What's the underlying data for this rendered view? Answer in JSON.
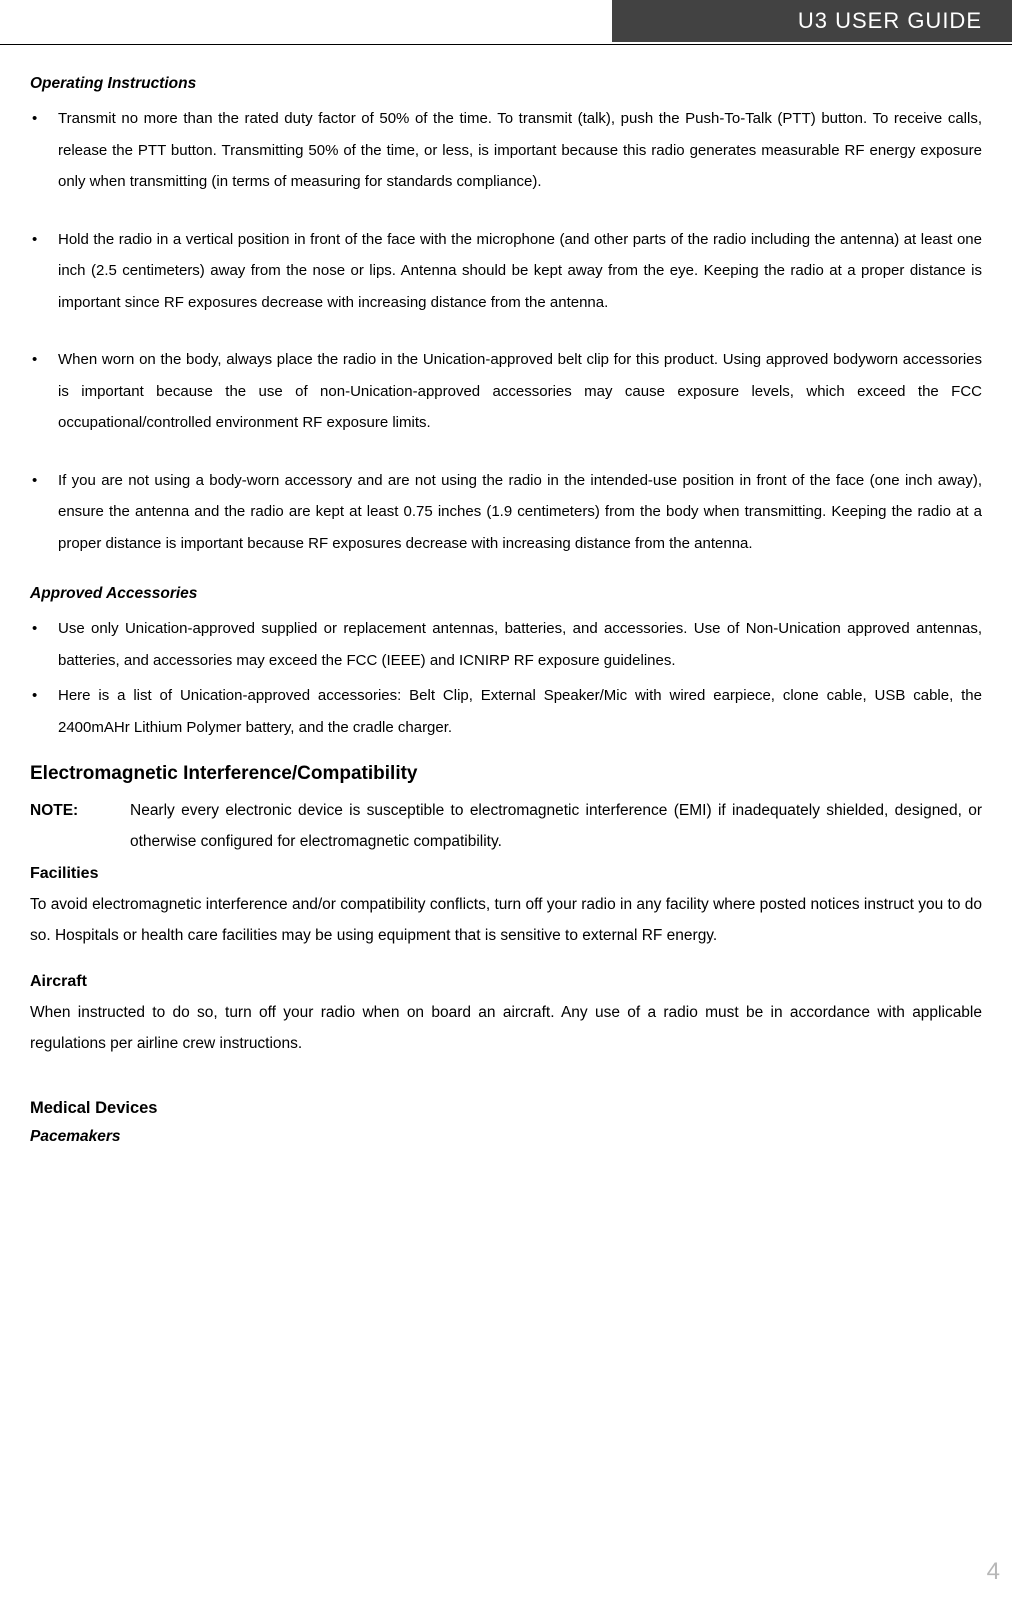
{
  "header": {
    "title": "U3 USER GUIDE",
    "bg_color": "#424242",
    "text_color": "#ffffff"
  },
  "operating_instructions": {
    "heading": "Operating Instructions",
    "items": [
      "Transmit no more than the rated duty factor of 50% of the time. To transmit (talk), push the Push-To-Talk (PTT) button. To receive calls, release the PTT button. Transmitting 50% of the time, or less, is important because this radio generates measurable RF energy exposure only when transmitting (in terms of measuring for standards compliance).",
      "Hold the radio in a vertical position in front of the face with the microphone (and other parts of the radio including the antenna) at least one inch (2.5 centimeters) away from the nose or lips. Antenna should be kept away from the eye. Keeping the radio at a proper distance is important since RF exposures decrease with increasing distance from the antenna.",
      "When worn on the body, always place the radio in the Unication-approved belt clip for this product. Using approved bodyworn accessories is important because the use of non-Unication-approved accessories may cause exposure levels, which exceed the FCC occupational/controlled environment RF exposure limits.",
      "If you are not using a body-worn accessory and are not using the radio in the intended-use position in front of the face (one inch away), ensure the antenna and the radio are kept at least 0.75 inches (1.9 centimeters) from the body when transmitting. Keeping the radio at a proper distance is important because RF exposures decrease with increasing distance from the antenna."
    ]
  },
  "approved_accessories": {
    "heading": "Approved Accessories",
    "items": [
      "Use only Unication-approved supplied or replacement antennas, batteries, and accessories. Use of Non-Unication approved antennas, batteries, and accessories may exceed the FCC (IEEE) and ICNIRP RF exposure guidelines.",
      "Here is a list of Unication-approved accessories: Belt Clip, External Speaker/Mic with wired earpiece, clone cable, USB cable, the 2400mAHr Lithium Polymer battery, and the cradle charger."
    ]
  },
  "emi": {
    "heading": "Electromagnetic Interference/Compatibility",
    "note_label": "NOTE:",
    "note_text": "Nearly every electronic device is susceptible to electromagnetic interference (EMI) if inadequately shielded, designed, or otherwise configured for electromagnetic compatibility.",
    "facilities_heading": "Facilities",
    "facilities_text": "To avoid electromagnetic interference and/or compatibility conflicts, turn off your radio in any facility where posted notices instruct you to do so. Hospitals or health care facilities may be using equipment that is sensitive to external RF energy.",
    "aircraft_heading": "Aircraft",
    "aircraft_text": "When instructed to do so, turn off your radio when on board an aircraft. Any use of a radio must be in accordance with applicable regulations per airline crew instructions."
  },
  "medical": {
    "heading": "Medical Devices",
    "pacemakers_heading": "Pacemakers"
  },
  "page_number": "4",
  "colors": {
    "text": "#000000",
    "page_num": "#b7b7b7",
    "bg": "#ffffff"
  }
}
